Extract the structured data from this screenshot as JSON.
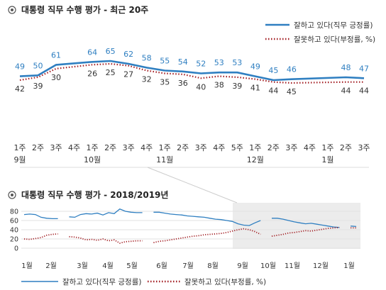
{
  "chart_data": [
    {
      "type": "line",
      "title": "대통령 직무 수행 평가 - 최근 20주",
      "categories": [
        "1주|9월",
        "2주",
        "3주",
        "4주",
        "1주|10월",
        "2주",
        "3주",
        "4주",
        "1주|11월",
        "2주",
        "3주",
        "4주",
        "5주",
        "1주|12월",
        "2주",
        "3주",
        "4주",
        "1주|1월",
        "2주",
        "3주"
      ],
      "series": [
        {
          "name": "잘하고 있다(직무 긍정률)",
          "color": "#2f7fc1",
          "values": [
            49,
            50,
            61,
            null,
            64,
            65,
            62,
            58,
            55,
            54,
            52,
            53,
            53,
            49,
            45,
            46,
            null,
            null,
            48,
            47
          ]
        },
        {
          "name": "잘못하고 있다(부정률, %)",
          "color": "#a31f24",
          "values": [
            42,
            39,
            30,
            null,
            26,
            25,
            27,
            32,
            35,
            36,
            40,
            38,
            39,
            41,
            44,
            45,
            null,
            null,
            44,
            44
          ]
        }
      ],
      "legend_position": "top-right"
    },
    {
      "type": "line",
      "title": "대통령 직무 수행 평가 - 2018/2019년",
      "x_labels": [
        "1월",
        "2월",
        "3월",
        "4월",
        "5월",
        "6월",
        "7월",
        "8월",
        "9월",
        "10월",
        "11월",
        "12월",
        "1월"
      ],
      "ylim": [
        0,
        80
      ],
      "yticks": [
        0,
        20,
        40,
        60,
        80
      ],
      "series": [
        {
          "name": "잘하고 있다(직무 긍정률)",
          "color": "#2f7fc1",
          "values": [
            73,
            74,
            73,
            67,
            65,
            64,
            64,
            null,
            68,
            67,
            73,
            75,
            74,
            76,
            72,
            77,
            75,
            85,
            80,
            78,
            77,
            77,
            null,
            78,
            78,
            76,
            74,
            73,
            72,
            70,
            69,
            68,
            67,
            65,
            63,
            62,
            60,
            58,
            53,
            50,
            49,
            55,
            60,
            null,
            65,
            65,
            63,
            60,
            57,
            55,
            53,
            54,
            52,
            50,
            48,
            46,
            45,
            null,
            48,
            47
          ]
        },
        {
          "name": "잘못하고 있다(부정률, %)",
          "color": "#a31f24",
          "values": [
            20,
            19,
            21,
            23,
            28,
            30,
            31,
            null,
            25,
            24,
            22,
            18,
            19,
            17,
            20,
            16,
            18,
            11,
            14,
            15,
            16,
            16,
            null,
            12,
            15,
            16,
            18,
            20,
            22,
            24,
            26,
            27,
            29,
            30,
            31,
            32,
            34,
            37,
            40,
            42,
            40,
            36,
            30,
            null,
            26,
            28,
            30,
            33,
            34,
            36,
            38,
            37,
            39,
            41,
            43,
            44,
            45,
            null,
            44,
            44
          ]
        }
      ],
      "highlight_region": "9월 – 1월",
      "legend_position": "bottom"
    }
  ]
}
